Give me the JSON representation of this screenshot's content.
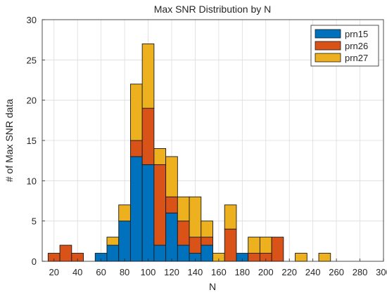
{
  "chart_data": {
    "type": "bar",
    "stacked": true,
    "title": "Max SNR Distribution by N",
    "xlabel": "N",
    "ylabel": "# of Max SNR data",
    "xlim": [
      10,
      300
    ],
    "ylim": [
      0,
      30
    ],
    "xticks": [
      20,
      40,
      60,
      80,
      100,
      120,
      140,
      160,
      180,
      200,
      220,
      240,
      260,
      280,
      300
    ],
    "yticks": [
      0,
      5,
      10,
      15,
      20,
      25,
      30
    ],
    "grid": true,
    "legend_position": "top-right",
    "bin_width": 10,
    "x": [
      20,
      30,
      40,
      60,
      70,
      80,
      90,
      100,
      110,
      120,
      130,
      140,
      150,
      160,
      170,
      180,
      190,
      200,
      210,
      230,
      250
    ],
    "series": [
      {
        "name": "prn15",
        "color": "#0072BD",
        "values": [
          0,
          0,
          0,
          1,
          2,
          5,
          13,
          12,
          2,
          6,
          2,
          1,
          2,
          0,
          0,
          1,
          0,
          0,
          0,
          0,
          0
        ]
      },
      {
        "name": "prn26",
        "color": "#D95319",
        "values": [
          1,
          2,
          1,
          0,
          0,
          0,
          2,
          7,
          10,
          2,
          3,
          2,
          1,
          0,
          4,
          0,
          1,
          1,
          3,
          0,
          0
        ]
      },
      {
        "name": "prn27",
        "color": "#EDB120",
        "values": [
          0,
          0,
          0,
          0,
          1,
          2,
          7,
          8,
          2,
          5,
          3,
          5,
          2,
          1,
          3,
          0,
          2,
          2,
          0,
          1,
          1
        ]
      }
    ]
  }
}
